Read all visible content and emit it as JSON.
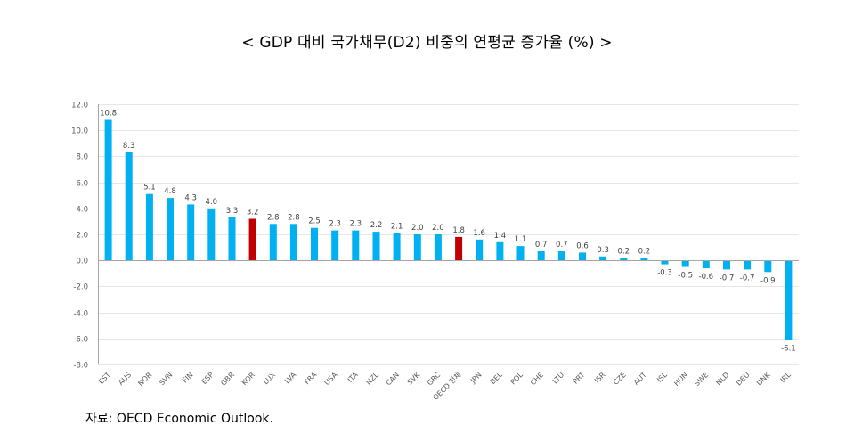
{
  "title": "< GDP 대비 국가채무(D2) 비중의 연평균 증가율 (%) >",
  "source": "자료: OECD Economic Outlook.",
  "colors": {
    "bar": "#00B0F0",
    "highlight": "#C00000",
    "grid": "#E6E6E6",
    "axis": "#A6A6A6",
    "text": "#595959"
  },
  "chart_data": {
    "type": "bar",
    "title": "< GDP 대비 국가채무(D2) 비중의 연평균 증가율 (%) >",
    "xlabel": "",
    "ylabel": "",
    "ylim": [
      -8.0,
      12.0
    ],
    "yticks": [
      12.0,
      10.0,
      8.0,
      6.0,
      4.0,
      2.0,
      0.0,
      -2.0,
      -4.0,
      -6.0,
      -8.0
    ],
    "ytick_labels": [
      "12.0",
      "10.0",
      "8.0",
      "6.0",
      "4.0",
      "2.0",
      "0.0",
      "-2.0",
      "-4.0",
      "-6.0",
      "-8.0"
    ],
    "grid": true,
    "legend": "none",
    "categories": [
      "EST",
      "AUS",
      "NOR",
      "SVN",
      "FIN",
      "ESP",
      "GBR",
      "KOR",
      "LUX",
      "LVA",
      "FRA",
      "USA",
      "ITA",
      "NZL",
      "CAN",
      "SVK",
      "GRC",
      "OECD 전체",
      "JPN",
      "BEL",
      "POL",
      "CHE",
      "LTU",
      "PRT",
      "ISR",
      "CZE",
      "AUT",
      "ISL",
      "HUN",
      "SWE",
      "NLD",
      "DEU",
      "DNK",
      "IRL"
    ],
    "values": [
      10.8,
      8.3,
      5.1,
      4.8,
      4.3,
      4.0,
      3.3,
      3.2,
      2.8,
      2.8,
      2.5,
      2.3,
      2.3,
      2.2,
      2.1,
      2.0,
      2.0,
      1.8,
      1.6,
      1.4,
      1.1,
      0.7,
      0.7,
      0.6,
      0.3,
      0.2,
      0.2,
      -0.3,
      -0.5,
      -0.6,
      -0.7,
      -0.7,
      -0.9,
      -6.1
    ],
    "value_labels": [
      "10.8",
      "8.3",
      "5.1",
      "4.8",
      "4.3",
      "4.0",
      "3.3",
      "3.2",
      "2.8",
      "2.8",
      "2.5",
      "2.3",
      "2.3",
      "2.2",
      "2.1",
      "2.0",
      "2.0",
      "1.8",
      "1.6",
      "1.4",
      "1.1",
      "0.7",
      "0.7",
      "0.6",
      "0.3",
      "0.2",
      "0.2",
      "-0.3",
      "-0.5",
      "-0.6",
      "-0.7",
      "-0.7",
      "-0.9",
      "-6.1"
    ],
    "highlighted": [
      "KOR",
      "OECD 전체"
    ]
  }
}
